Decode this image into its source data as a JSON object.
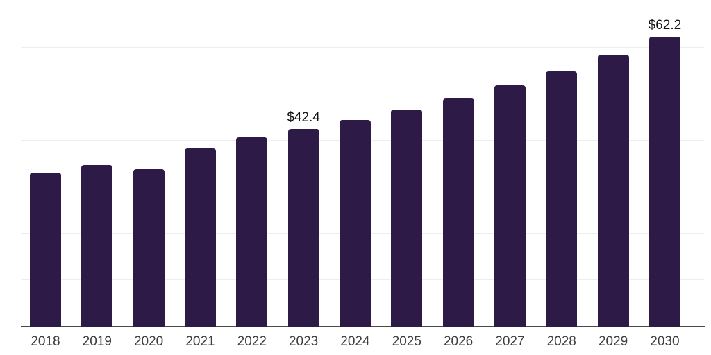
{
  "chart_data": {
    "type": "bar",
    "title": "",
    "xlabel": "",
    "ylabel": "",
    "categories": [
      "2018",
      "2019",
      "2020",
      "2021",
      "2022",
      "2023",
      "2024",
      "2025",
      "2026",
      "2027",
      "2028",
      "2029",
      "2030"
    ],
    "values": [
      33.0,
      34.6,
      33.7,
      38.2,
      40.6,
      42.4,
      44.3,
      46.6,
      48.9,
      51.8,
      54.8,
      58.3,
      62.2
    ],
    "data_labels": {
      "2023": "$42.4",
      "2030": "$62.2"
    },
    "ylim": [
      0,
      70
    ],
    "gridline_step": 10,
    "grid": "horizontal",
    "legend": "none",
    "bar_color": "#2E1A47",
    "gridline_color": "#EEEEEE",
    "axis_line_color": "#4A4A4A",
    "tick_label_color": "#3E3E3E",
    "data_label_color": "#121212",
    "background_color": "#FFFFFF"
  }
}
